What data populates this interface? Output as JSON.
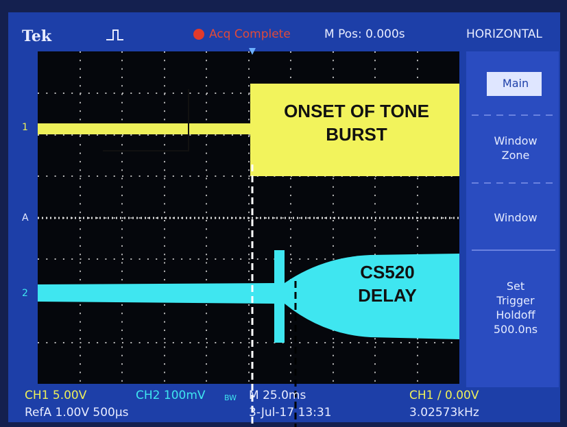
{
  "header": {
    "brand": "Tek",
    "acq_status": "Acq Complete",
    "position": "M Pos: 0.000s",
    "menu_title": "HORIZONTAL"
  },
  "menu": [
    [
      "Main"
    ],
    [
      "Window",
      "Zone"
    ],
    [
      "Window"
    ],
    [
      "Set",
      "Trigger",
      "Holdoff",
      "500.0ns"
    ]
  ],
  "annotations": [
    [
      "ONSET OF TONE",
      "BURST"
    ],
    [
      "CS520",
      "DELAY"
    ]
  ],
  "markers": {
    "ch1": "1",
    "trigger": "A",
    "ch2": "2"
  },
  "footer": {
    "ch1_scale": "CH1  5.00V",
    "ch2_scale": "CH2  100mV",
    "bw": "BW",
    "timebase": "M 25.0ms",
    "trigger_level": "CH1 ∕ 0.00V",
    "ref": "RefA  1.00V  500µs",
    "date": "3-Jul-17 13:31",
    "freq": "3.02573kHz"
  }
}
